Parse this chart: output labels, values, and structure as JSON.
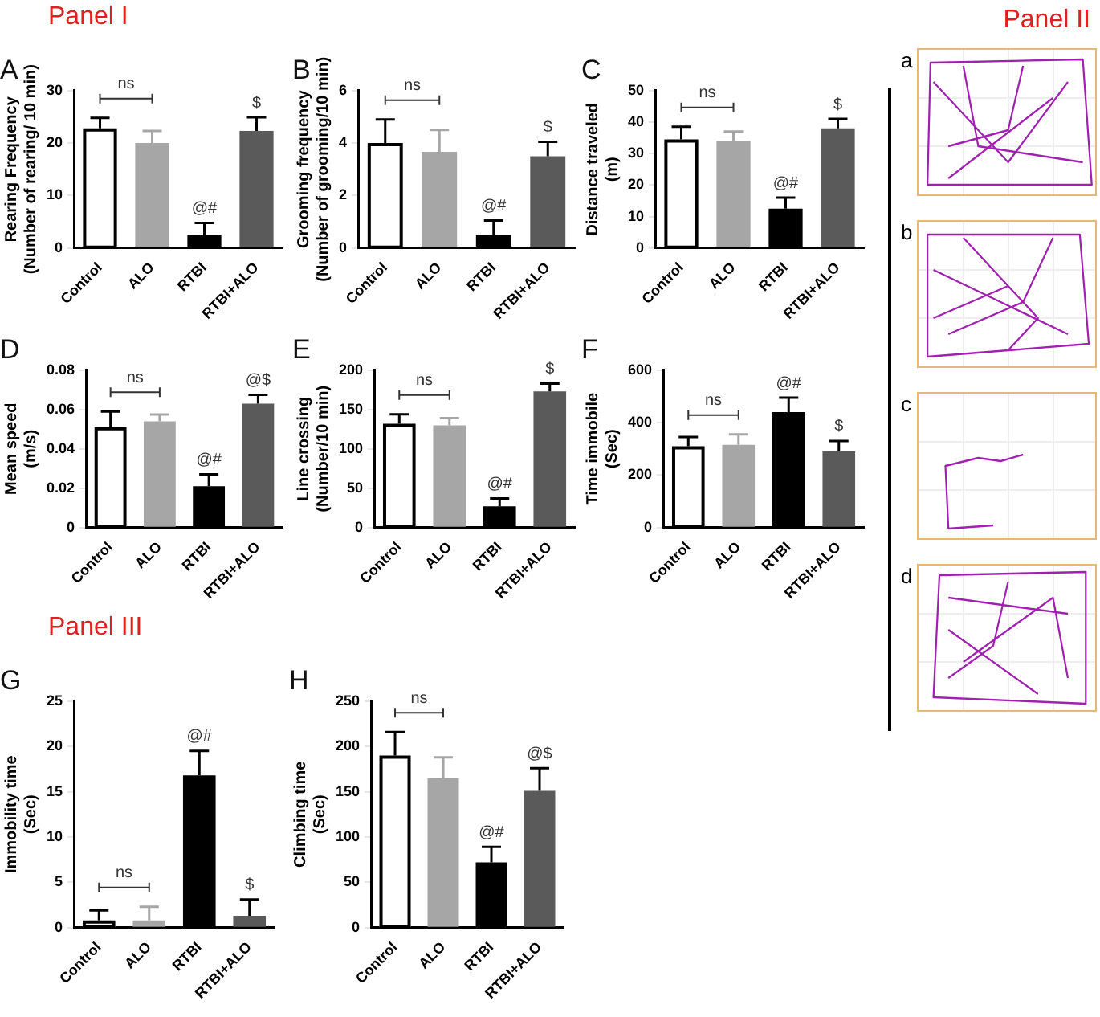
{
  "chart_data": [
    {
      "type": "bar",
      "title": "A",
      "subtitle": "Panel I",
      "ylabel": "Rearing Frequency\n(Number of rearing/ 10 min)",
      "categories": [
        "Control",
        "ALO",
        "RTBI",
        "RTBI+ALO"
      ],
      "values": [
        22.8,
        20,
        2.4,
        22.3
      ],
      "errors": [
        [
          22.8,
          24.8
        ],
        [
          20,
          22.3
        ],
        [
          2.4,
          4.8
        ],
        [
          22.3,
          24.9
        ]
      ],
      "colors": [
        "#ffffff",
        "#a6a6a6",
        "#000000",
        "#5a5a5a"
      ],
      "ylim": [
        0,
        30
      ],
      "yticks": [
        0,
        10,
        20,
        30
      ],
      "annotations": [
        "ns",
        {
          "text": "@#",
          "x": "RTBI",
          "y": 4.8
        },
        {
          "text": "$",
          "x": "RTBI+ALO",
          "y": 24.9
        }
      ]
    },
    {
      "type": "bar",
      "title": "B",
      "ylabel": "Grooming frequency\n(Number of grooming/10 min)",
      "categories": [
        "Control",
        "ALO",
        "RTBI",
        "RTBI+ALO"
      ],
      "values": [
        4,
        3.67,
        0.5,
        3.5
      ],
      "errors": [
        [
          4,
          4.9
        ],
        [
          3.67,
          4.5
        ],
        [
          0.5,
          1.05
        ],
        [
          3.5,
          4.05
        ]
      ],
      "colors": [
        "#ffffff",
        "#a6a6a6",
        "#000000",
        "#5a5a5a"
      ],
      "ylim": [
        0,
        6
      ],
      "yticks": [
        0,
        2,
        4,
        6
      ],
      "annotations": [
        "ns",
        {
          "text": "@#",
          "x": "RTBI",
          "y": 1.05
        },
        {
          "text": "$",
          "x": "RTBI+ALO",
          "y": 4.05
        }
      ]
    },
    {
      "type": "bar",
      "title": "C",
      "ylabel": "Distance traveled\n(m)",
      "categories": [
        "Control",
        "ALO",
        "RTBI",
        "RTBI+ALO"
      ],
      "values": [
        34.5,
        34,
        12.5,
        38
      ],
      "errors": [
        [
          34.5,
          38.5
        ],
        [
          34,
          37
        ],
        [
          12.5,
          16
        ],
        [
          38,
          41
        ]
      ],
      "colors": [
        "#ffffff",
        "#a6a6a6",
        "#000000",
        "#5a5a5a"
      ],
      "ylim": [
        0,
        50
      ],
      "yticks": [
        0,
        10,
        20,
        30,
        40,
        50
      ],
      "annotations": [
        "ns",
        {
          "text": "@#",
          "x": "RTBI",
          "y": 16
        },
        {
          "text": "$",
          "x": "RTBI+ALO",
          "y": 41
        }
      ]
    },
    {
      "type": "bar",
      "title": "D",
      "ylabel": "Mean speed\n(m/s)",
      "categories": [
        "Control",
        "ALO",
        "RTBI",
        "RTBI+ALO"
      ],
      "values": [
        0.051,
        0.054,
        0.021,
        0.063
      ],
      "errors": [
        [
          0.051,
          0.059
        ],
        [
          0.054,
          0.0575
        ],
        [
          0.021,
          0.027
        ],
        [
          0.063,
          0.0675
        ]
      ],
      "colors": [
        "#ffffff",
        "#a6a6a6",
        "#000000",
        "#5a5a5a"
      ],
      "ylim": [
        0,
        0.08
      ],
      "yticks": [
        0,
        0.02,
        0.04,
        0.06,
        0.08
      ],
      "annotations": [
        "ns",
        {
          "text": "@#",
          "x": "RTBI",
          "y": 0.027
        },
        {
          "text": "@$",
          "x": "RTBI+ALO",
          "y": 0.0675
        }
      ]
    },
    {
      "type": "bar",
      "title": "E",
      "ylabel": "Line crossing\n(Number/10 min)",
      "categories": [
        "Control",
        "ALO",
        "RTBI",
        "RTBI+ALO"
      ],
      "values": [
        132,
        130,
        27,
        173
      ],
      "errors": [
        [
          132,
          144
        ],
        [
          130,
          139
        ],
        [
          27,
          37
        ],
        [
          173,
          183
        ]
      ],
      "colors": [
        "#ffffff",
        "#a6a6a6",
        "#000000",
        "#5a5a5a"
      ],
      "ylim": [
        0,
        200
      ],
      "yticks": [
        0,
        50,
        100,
        150,
        200
      ],
      "annotations": [
        "ns",
        {
          "text": "@#",
          "x": "RTBI",
          "y": 37
        },
        {
          "text": "$",
          "x": "RTBI+ALO",
          "y": 183
        }
      ]
    },
    {
      "type": "bar",
      "title": "F",
      "ylabel": "Time immobile\n(Sec)",
      "categories": [
        "Control",
        "ALO",
        "RTBI",
        "RTBI+ALO"
      ],
      "values": [
        310,
        315,
        440,
        290
      ],
      "errors": [
        [
          310,
          345
        ],
        [
          315,
          355
        ],
        [
          440,
          495
        ],
        [
          290,
          330
        ]
      ],
      "colors": [
        "#ffffff",
        "#a6a6a6",
        "#000000",
        "#5a5a5a"
      ],
      "ylim": [
        0,
        600
      ],
      "yticks": [
        0,
        200,
        400,
        600
      ],
      "annotations": [
        "ns",
        {
          "text": "@#",
          "x": "RTBI",
          "y": 495
        },
        {
          "text": "$",
          "x": "RTBI+ALO",
          "y": 330
        }
      ]
    },
    {
      "type": "bar",
      "title": "G",
      "subtitle": "Panel III",
      "ylabel": "Immobility time\n(Sec)",
      "categories": [
        "Control",
        "ALO",
        "RTBI",
        "RTBI+ALO"
      ],
      "values": [
        0.8,
        0.8,
        16.8,
        1.3
      ],
      "errors": [
        [
          0.8,
          1.9
        ],
        [
          0.8,
          2.3
        ],
        [
          16.8,
          19.5
        ],
        [
          1.3,
          3.1
        ]
      ],
      "colors": [
        "#ffffff",
        "#a6a6a6",
        "#000000",
        "#5a5a5a"
      ],
      "ylim": [
        0,
        25
      ],
      "yticks": [
        0,
        5,
        10,
        15,
        20,
        25
      ],
      "annotations": [
        "ns",
        {
          "text": "@#",
          "x": "RTBI",
          "y": 19.5
        },
        {
          "text": "$",
          "x": "RTBI+ALO",
          "y": 3.1
        }
      ]
    },
    {
      "type": "bar",
      "title": "H",
      "ylabel": "Climbing time\n(Sec)",
      "categories": [
        "Control",
        "ALO",
        "RTBI",
        "RTBI+ALO"
      ],
      "values": [
        190,
        165,
        72,
        151
      ],
      "errors": [
        [
          190,
          216
        ],
        [
          165,
          188
        ],
        [
          72,
          89
        ],
        [
          151,
          176
        ]
      ],
      "colors": [
        "#ffffff",
        "#a6a6a6",
        "#000000",
        "#5a5a5a"
      ],
      "ylim": [
        0,
        250
      ],
      "yticks": [
        0,
        50,
        100,
        150,
        200,
        250
      ],
      "annotations": [
        "ns",
        {
          "text": "@#",
          "x": "RTBI",
          "y": 89
        },
        {
          "text": "@$",
          "x": "RTBI+ALO",
          "y": 176
        }
      ]
    },
    {
      "type": "other",
      "title": "Panel II",
      "annotations": [
        "a",
        "b",
        "c",
        "d"
      ]
    }
  ]
}
